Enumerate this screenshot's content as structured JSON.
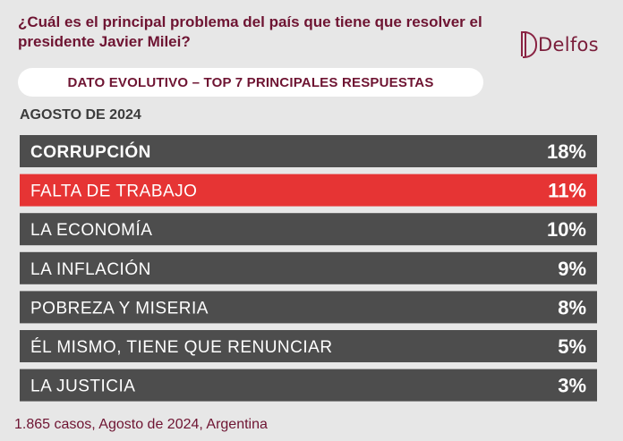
{
  "header": {
    "question": "¿Cuál es el principal problema del país que tiene que resolver el presidente Javier Milei?",
    "brand": "Delfos",
    "subtitle": "DATO EVOLUTIVO – TOP 7 PRINCIPALES RESPUESTAS",
    "period": "AGOSTO DE 2024"
  },
  "colors": {
    "bar_default": "#4d4d4d",
    "bar_highlight": "#e63434",
    "text_on_bar": "#ffffff",
    "accent": "#6e1432"
  },
  "chart_data": {
    "type": "table",
    "unit": "%",
    "highlight_index": 1,
    "rows": [
      {
        "label": "CORRUPCIÓN",
        "value": 18,
        "display": "18%",
        "bold": true
      },
      {
        "label": "FALTA DE TRABAJO",
        "value": 11,
        "display": "11%",
        "bold": false
      },
      {
        "label": "LA ECONOMÍA",
        "value": 10,
        "display": "10%",
        "bold": false
      },
      {
        "label": "LA INFLACIÓN",
        "value": 9,
        "display": "9%",
        "bold": false
      },
      {
        "label": "POBREZA Y MISERIA",
        "value": 8,
        "display": "8%",
        "bold": false
      },
      {
        "label": "ÉL MISMO, TIENE QUE RENUNCIAR",
        "value": 5,
        "display": "5%",
        "bold": false
      },
      {
        "label": "LA JUSTICIA",
        "value": 3,
        "display": "3%",
        "bold": false
      }
    ]
  },
  "footer": {
    "note": "1.865 casos, Agosto de 2024, Argentina"
  }
}
